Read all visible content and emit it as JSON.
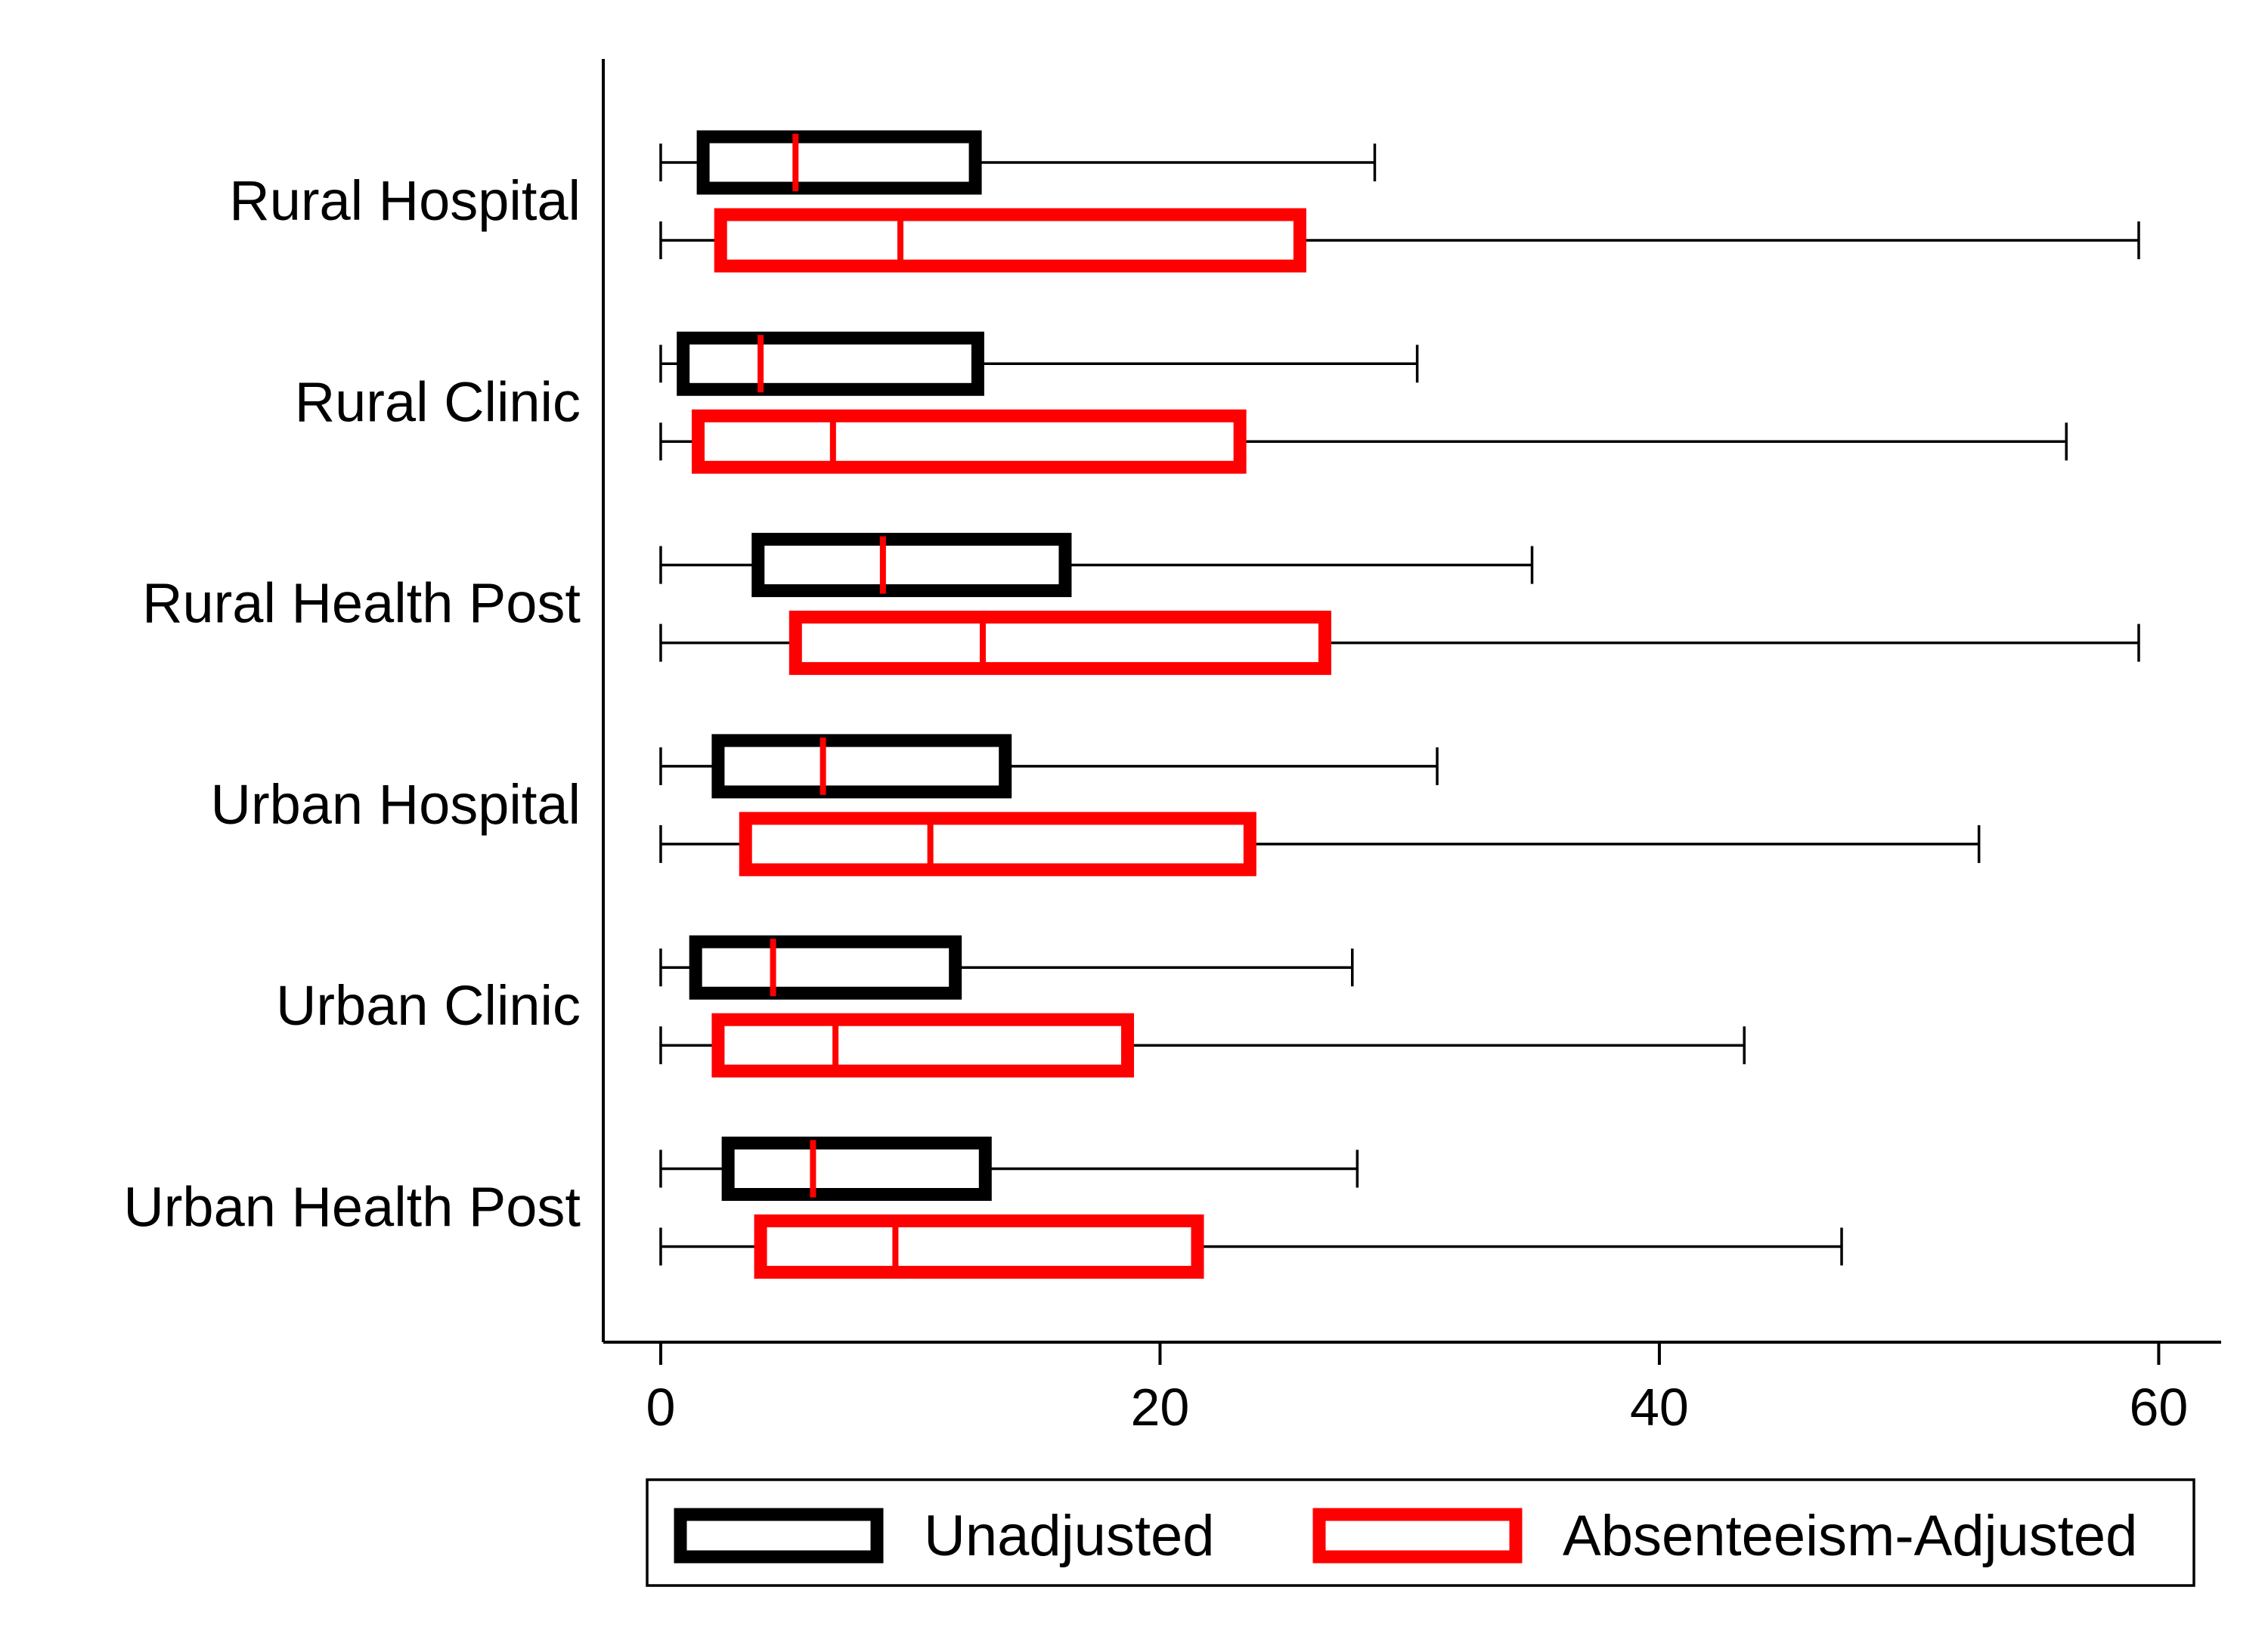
{
  "colors": {
    "unadjusted": "#000000",
    "adjusted": "#ff0000",
    "median": "#ff0000",
    "whisker": "#000000",
    "axis": "#000000",
    "background": "#ffffff"
  },
  "chart_data": {
    "type": "boxplot",
    "orientation": "horizontal",
    "title": "",
    "xlabel": "",
    "ylabel": "",
    "xlim": [
      -2.3,
      62.5
    ],
    "x_ticks": [
      0,
      20,
      40,
      60
    ],
    "grid": false,
    "legend_position": "bottom",
    "categories": [
      "Rural Hospital",
      "Rural Clinic",
      "Rural Health Post",
      "Urban Hospital",
      "Urban Clinic",
      "Urban Health Post"
    ],
    "series": [
      {
        "name": "Unadjusted",
        "color": "#000000",
        "boxes": [
          {
            "min": 0,
            "q1": 1.7,
            "median": 5.4,
            "q3": 12.6,
            "max": 28.6
          },
          {
            "min": 0,
            "q1": 0.9,
            "median": 4.0,
            "q3": 12.7,
            "max": 30.3
          },
          {
            "min": 0,
            "q1": 3.9,
            "median": 8.9,
            "q3": 16.2,
            "max": 34.9
          },
          {
            "min": 0,
            "q1": 2.3,
            "median": 6.5,
            "q3": 13.8,
            "max": 31.1
          },
          {
            "min": 0,
            "q1": 1.4,
            "median": 4.5,
            "q3": 11.8,
            "max": 27.7
          },
          {
            "min": 0,
            "q1": 2.7,
            "median": 6.1,
            "q3": 13.0,
            "max": 27.9
          }
        ]
      },
      {
        "name": "Absenteeism-Adjusted",
        "color": "#ff0000",
        "boxes": [
          {
            "min": 0,
            "q1": 2.4,
            "median": 9.6,
            "q3": 25.6,
            "max": 59.2
          },
          {
            "min": 0,
            "q1": 1.5,
            "median": 6.9,
            "q3": 23.2,
            "max": 56.3
          },
          {
            "min": 0,
            "q1": 5.4,
            "median": 12.9,
            "q3": 26.6,
            "max": 59.2
          },
          {
            "min": 0,
            "q1": 3.4,
            "median": 10.8,
            "q3": 23.6,
            "max": 52.8
          },
          {
            "min": 0,
            "q1": 2.3,
            "median": 7.0,
            "q3": 18.7,
            "max": 43.4
          },
          {
            "min": 0,
            "q1": 4.0,
            "median": 9.4,
            "q3": 21.5,
            "max": 47.3
          }
        ]
      }
    ]
  }
}
